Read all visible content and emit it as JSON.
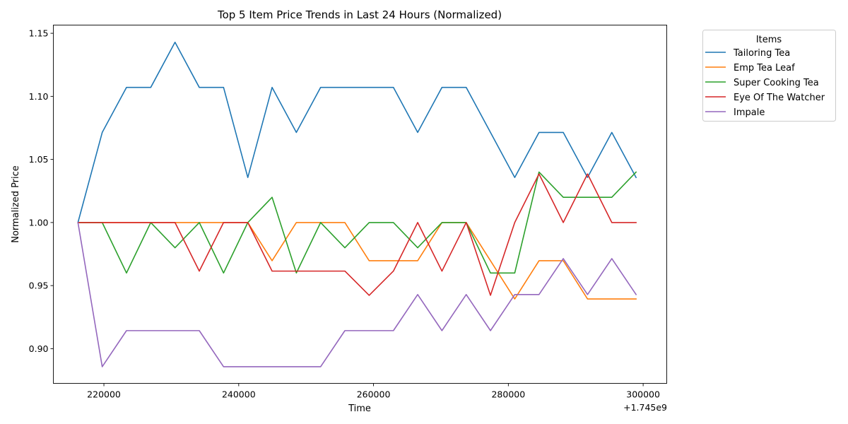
{
  "chart_data": {
    "type": "line",
    "title": "Top 5 Item Price Trends in Last 24 Hours (Normalized)",
    "xlabel": "Time",
    "ylabel": "Normalized Price",
    "x_offset_label": "+1.745e9",
    "xlim": [
      212500,
      303500
    ],
    "ylim": [
      0.8725,
      1.1565
    ],
    "x_ticks": [
      220000,
      240000,
      260000,
      280000,
      300000
    ],
    "y_ticks": [
      0.9,
      0.95,
      1.0,
      1.05,
      1.1,
      1.15
    ],
    "x_tick_labels": [
      "220000",
      "240000",
      "260000",
      "280000",
      "300000"
    ],
    "y_tick_labels": [
      "0.90",
      "0.95",
      "1.00",
      "1.05",
      "1.10",
      "1.15"
    ],
    "grid": false,
    "legend": {
      "title": "Items",
      "placement": "outside-top-right"
    },
    "x": [
      216150,
      219750,
      223350,
      226950,
      230550,
      234150,
      237750,
      241350,
      244950,
      248550,
      252150,
      255750,
      259350,
      262950,
      266550,
      270150,
      273750,
      277350,
      280950,
      284550,
      288150,
      291750,
      295350,
      298950
    ],
    "series": [
      {
        "name": "Tailoring Tea",
        "color": "#1f77b4",
        "values": [
          1.0,
          1.0714,
          1.1071,
          1.1071,
          1.1429,
          1.1071,
          1.1071,
          1.0357,
          1.1071,
          1.0714,
          1.1071,
          1.1071,
          1.1071,
          1.1071,
          1.0714,
          1.1071,
          1.1071,
          1.0714,
          1.0357,
          1.0714,
          1.0714,
          1.0357,
          1.0714,
          1.0357
        ]
      },
      {
        "name": "Emp Tea Leaf",
        "color": "#ff7f0e",
        "values": [
          1.0,
          1.0,
          1.0,
          1.0,
          1.0,
          1.0,
          1.0,
          1.0,
          0.9697,
          1.0,
          1.0,
          1.0,
          0.9697,
          0.9697,
          0.9697,
          1.0,
          1.0,
          0.9697,
          0.9394,
          0.9697,
          0.9697,
          0.9394,
          0.9394,
          0.9394
        ]
      },
      {
        "name": "Super Cooking Tea",
        "color": "#2ca02c",
        "values": [
          1.0,
          1.0,
          0.96,
          1.0,
          0.98,
          1.0,
          0.96,
          1.0,
          1.02,
          0.96,
          1.0,
          0.98,
          1.0,
          1.0,
          0.98,
          1.0,
          1.0,
          0.96,
          0.96,
          1.04,
          1.02,
          1.02,
          1.02,
          1.04
        ]
      },
      {
        "name": "Eye Of The Watcher",
        "color": "#d62728",
        "values": [
          1.0,
          1.0,
          1.0,
          1.0,
          1.0,
          0.9615,
          1.0,
          1.0,
          0.9615,
          0.9615,
          0.9615,
          0.9615,
          0.9423,
          0.9615,
          1.0,
          0.9615,
          1.0,
          0.9423,
          1.0,
          1.0385,
          1.0,
          1.0385,
          1.0,
          1.0
        ]
      },
      {
        "name": "Impale",
        "color": "#9467bd",
        "values": [
          1.0,
          0.8857,
          0.9143,
          0.9143,
          0.9143,
          0.9143,
          0.8857,
          0.8857,
          0.8857,
          0.8857,
          0.8857,
          0.9143,
          0.9143,
          0.9143,
          0.9429,
          0.9143,
          0.9429,
          0.9143,
          0.9429,
          0.9429,
          0.9714,
          0.9429,
          0.9714,
          0.9429
        ]
      }
    ]
  }
}
